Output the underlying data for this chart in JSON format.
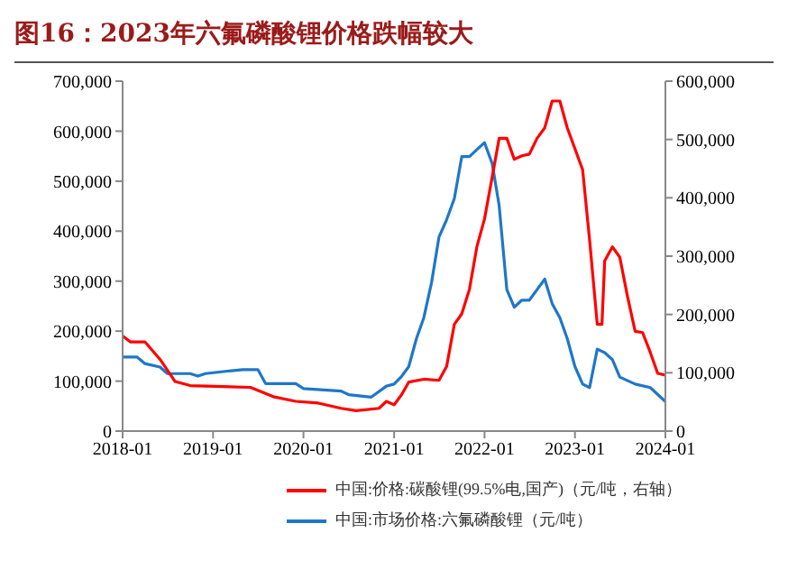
{
  "chart_data": {
    "type": "line",
    "title": "图16：2023年六氟磷酸锂价格跌幅较大",
    "series": [
      {
        "name": "中国:市场价格:六氟磷酸锂（元/吨）",
        "color": "#1f77c8",
        "x": [
          "2018-01",
          "2018-03",
          "2018-04",
          "2018-06",
          "2018-07",
          "2018-10",
          "2018-11",
          "2018-12",
          "2019-03",
          "2019-05",
          "2019-07",
          "2019-08",
          "2019-12",
          "2020-01",
          "2020-06",
          "2020-07",
          "2020-10",
          "2020-12",
          "2021-01",
          "2021-02",
          "2021-03",
          "2021-04",
          "2021-05",
          "2021-06",
          "2021-07",
          "2021-08",
          "2021-09",
          "2021-10",
          "2021-11",
          "2021-12",
          "2022-01",
          "2022-02",
          "2022-03",
          "2022-04",
          "2022-05",
          "2022-06",
          "2022-07",
          "2022-08",
          "2022-09",
          "2022-10",
          "2022-11",
          "2022-12",
          "2023-01",
          "2023-02",
          "2023-03",
          "2023-04",
          "2023-05",
          "2023-06",
          "2023-07",
          "2023-09",
          "2023-11",
          "2024-01"
        ],
        "values": [
          148000,
          148000,
          135000,
          128000,
          115000,
          115000,
          110000,
          115000,
          120000,
          123000,
          123000,
          95000,
          95000,
          85000,
          80000,
          73000,
          68000,
          90000,
          94000,
          110000,
          129000,
          185000,
          227000,
          297000,
          388000,
          423000,
          465000,
          549000,
          549000,
          563000,
          577000,
          535000,
          451000,
          283000,
          248000,
          262000,
          262000,
          283000,
          304000,
          255000,
          227000,
          185000,
          129000,
          94000,
          87000,
          164000,
          157000,
          143000,
          108000,
          94000,
          87000,
          59000
        ]
      },
      {
        "name": "中国:价格:碳酸锂(99.5%电,国产)（元/吨，右轴）",
        "color": "#ff0000",
        "axis": "y2",
        "x": [
          "2018-01",
          "2018-02",
          "2018-04",
          "2018-06",
          "2018-08",
          "2018-10",
          "2019-06",
          "2019-09",
          "2019-12",
          "2020-03",
          "2020-06",
          "2020-08",
          "2020-11",
          "2020-12",
          "2021-01",
          "2021-02",
          "2021-03",
          "2021-05",
          "2021-07",
          "2021-08",
          "2021-09",
          "2021-10",
          "2021-11",
          "2021-12",
          "2022-01",
          "2022-02",
          "2022-03",
          "2022-04",
          "2022-05",
          "2022-06",
          "2022-07",
          "2022-08",
          "2022-09",
          "2022-10",
          "2022-11",
          "2022-12",
          "2023-01",
          "2023-02",
          "2023-03",
          "2023-04",
          "2023-04-20",
          "2023-05",
          "2023-06",
          "2023-07",
          "2023-08",
          "2023-09",
          "2023-10",
          "2023-11",
          "2023-12",
          "2024-01"
        ],
        "values": [
          163000,
          153000,
          153000,
          123000,
          85000,
          78000,
          75000,
          59000,
          51000,
          48000,
          39000,
          35000,
          39000,
          51000,
          45000,
          63000,
          84000,
          89000,
          87000,
          111000,
          183000,
          201000,
          243000,
          316000,
          364000,
          436000,
          502000,
          502000,
          466000,
          472000,
          475000,
          502000,
          520000,
          566000,
          566000,
          520000,
          484000,
          448000,
          328000,
          183000,
          183000,
          292000,
          316000,
          298000,
          231000,
          171000,
          169000,
          135000,
          99000,
          96000
        ]
      }
    ],
    "xlim": [
      "2018-01",
      "2024-01"
    ],
    "xticks": [
      "2018-01",
      "2019-01",
      "2020-01",
      "2021-01",
      "2022-01",
      "2023-01",
      "2024-01"
    ],
    "ylim": [
      0,
      700000
    ],
    "yticks": [
      0,
      {
        "value": 100000,
        "label": "100,000"
      },
      {
        "value": 200000,
        "label": "200,000"
      },
      {
        "value": 300000,
        "label": "300,000"
      },
      {
        "value": 400000,
        "label": "400,000"
      },
      {
        "value": 500000,
        "label": "500,000"
      },
      {
        "value": 600000,
        "label": "600,000"
      },
      {
        "value": 700000,
        "label": "700,000"
      }
    ],
    "y2lim": [
      0,
      600000
    ],
    "y2ticks": [
      0,
      {
        "value": 100000,
        "label": "100,000"
      },
      {
        "value": 200000,
        "label": "200,000"
      },
      {
        "value": 300000,
        "label": "300,000"
      },
      {
        "value": 400000,
        "label": "400,000"
      },
      {
        "value": 500000,
        "label": "500,000"
      },
      {
        "value": 600000,
        "label": "600,000"
      }
    ],
    "legend": "bottom",
    "grid": false
  }
}
